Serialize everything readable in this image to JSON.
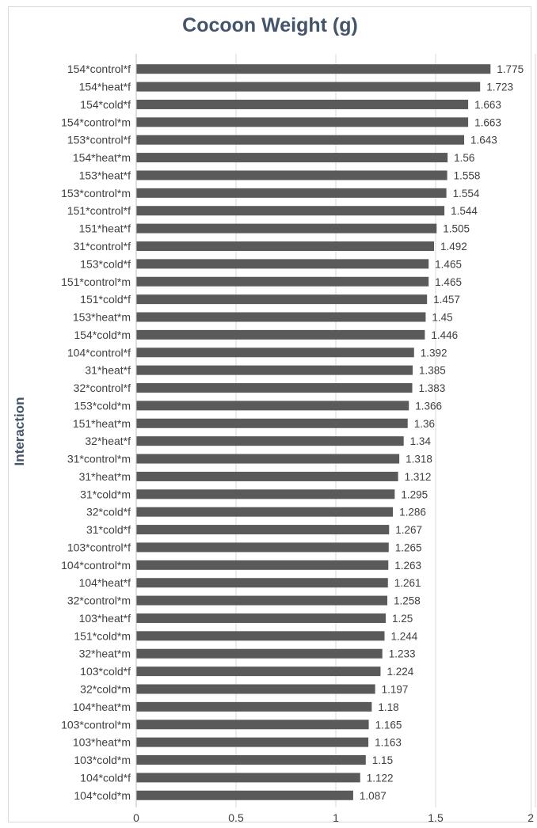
{
  "chart_data": {
    "type": "bar",
    "orientation": "horizontal",
    "title": "Cocoon Weight (g)",
    "xlabel": "",
    "ylabel": "Interaction",
    "xlim": [
      0,
      2
    ],
    "x_ticks": [
      "0",
      "0.5",
      "1",
      "1.5",
      "2"
    ],
    "grid": true,
    "legend": "none",
    "bar_color": "#5a5a5a",
    "title_color": "#44546a",
    "categories": [
      "154*control*f",
      "154*heat*f",
      "154*cold*f",
      "154*control*m",
      "153*control*f",
      "154*heat*m",
      "153*heat*f",
      "153*control*m",
      "151*control*f",
      "151*heat*f",
      "31*control*f",
      "153*cold*f",
      "151*control*m",
      "151*cold*f",
      "153*heat*m",
      "154*cold*m",
      "104*control*f",
      "31*heat*f",
      "32*control*f",
      "153*cold*m",
      "151*heat*m",
      "32*heat*f",
      "31*control*m",
      "31*heat*m",
      "31*cold*m",
      "32*cold*f",
      "31*cold*f",
      "103*control*f",
      "104*control*m",
      "104*heat*f",
      "32*control*m",
      "103*heat*f",
      "151*cold*m",
      "32*heat*m",
      "103*cold*f",
      "32*cold*m",
      "104*heat*m",
      "103*control*m",
      "103*heat*m",
      "103*cold*m",
      "104*cold*f",
      "104*cold*m"
    ],
    "values": [
      1.775,
      1.723,
      1.663,
      1.663,
      1.643,
      1.56,
      1.558,
      1.554,
      1.544,
      1.505,
      1.492,
      1.465,
      1.465,
      1.457,
      1.45,
      1.446,
      1.392,
      1.385,
      1.383,
      1.366,
      1.36,
      1.34,
      1.318,
      1.312,
      1.295,
      1.286,
      1.267,
      1.265,
      1.263,
      1.261,
      1.258,
      1.25,
      1.244,
      1.233,
      1.224,
      1.197,
      1.18,
      1.165,
      1.163,
      1.15,
      1.122,
      1.087
    ],
    "data_labels": [
      "1.775",
      "1.723",
      "1.663",
      "1.663",
      "1.643",
      "1.56",
      "1.558",
      "1.554",
      "1.544",
      "1.505",
      "1.492",
      "1.465",
      "1.465",
      "1.457",
      "1.45",
      "1.446",
      "1.392",
      "1.385",
      "1.383",
      "1.366",
      "1.36",
      "1.34",
      "1.318",
      "1.312",
      "1.295",
      "1.286",
      "1.267",
      "1.265",
      "1.263",
      "1.261",
      "1.258",
      "1.25",
      "1.244",
      "1.233",
      "1.224",
      "1.197",
      "1.18",
      "1.165",
      "1.163",
      "1.15",
      "1.122",
      "1.087"
    ]
  }
}
